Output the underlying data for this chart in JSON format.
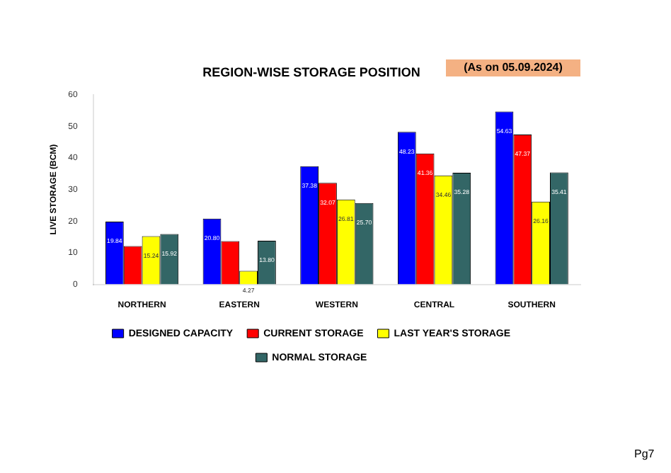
{
  "chart_data": {
    "type": "bar",
    "title": "REGION-WISE STORAGE POSITION",
    "ylabel": "LIVE STORAGE (BCM)",
    "categories": [
      "NORTHERN",
      "EASTERN",
      "WESTERN",
      "CENTRAL",
      "SOUTHERN"
    ],
    "series": [
      {
        "name": "DESIGNED CAPACITY",
        "color": "#0000ff",
        "values": [
          19.84,
          20.8,
          37.38,
          48.23,
          54.63
        ],
        "value_labels": [
          "19.84",
          "20.80",
          "37.38",
          "48.23",
          "54.63"
        ]
      },
      {
        "name": "CURRENT STORAGE",
        "color": "#ff0000",
        "values": [
          12.1,
          13.7,
          32.07,
          41.36,
          47.37
        ],
        "value_labels": [
          null,
          null,
          "32.07",
          "41.36",
          "47.37"
        ]
      },
      {
        "name": "LAST YEAR'S STORAGE",
        "color": "#ffff00",
        "values": [
          15.24,
          4.27,
          26.81,
          34.46,
          26.16
        ],
        "value_labels": [
          "15.24",
          "4.27",
          "26.81",
          "34.46",
          "26.16"
        ]
      },
      {
        "name": "NORMAL STORAGE",
        "color": "#336666",
        "values": [
          15.92,
          13.8,
          25.7,
          35.28,
          35.41
        ],
        "value_labels": [
          "15.92",
          "13.80",
          "25.70",
          "35.28",
          "35.41"
        ]
      }
    ],
    "ylim": [
      0,
      60
    ],
    "yticks": [
      0,
      10,
      20,
      30,
      40,
      50,
      60
    ],
    "grid": false,
    "legend": "bottom",
    "annotations": [
      "(As on 05.09.2024)",
      "Pg7"
    ]
  }
}
